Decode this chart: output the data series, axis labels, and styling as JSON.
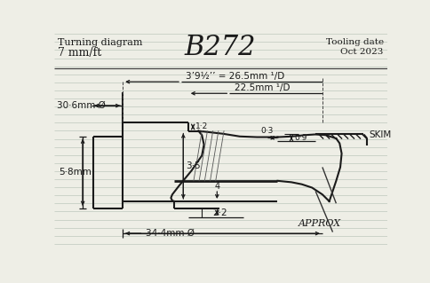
{
  "title": "B272",
  "subtitle_left1": "Turning diagram",
  "subtitle_left2": "7 mm/ft",
  "subtitle_right1": "Tooling date",
  "subtitle_right2": "Oct 2023",
  "bg_color": "#eeeee6",
  "line_color": "#1a1a1a",
  "text_color": "#1a1a1a",
  "dim1_text": "3’9½’’ = 26.5mm ¹/D",
  "dim2_text": "22.5mm ¹/D",
  "dim3_text": "30·6mm Ø",
  "dim4_text": "1·2",
  "dim5_text": "3·5",
  "dim6_text": "0·3",
  "dim7_text": "0·9",
  "dim8_text": "5·8mm",
  "dim9_text": "2·2",
  "dim10_text": "4",
  "dim11_text": "34·4mm Ø",
  "dim12_text": "SKIM",
  "dim13_text": "APPROX"
}
